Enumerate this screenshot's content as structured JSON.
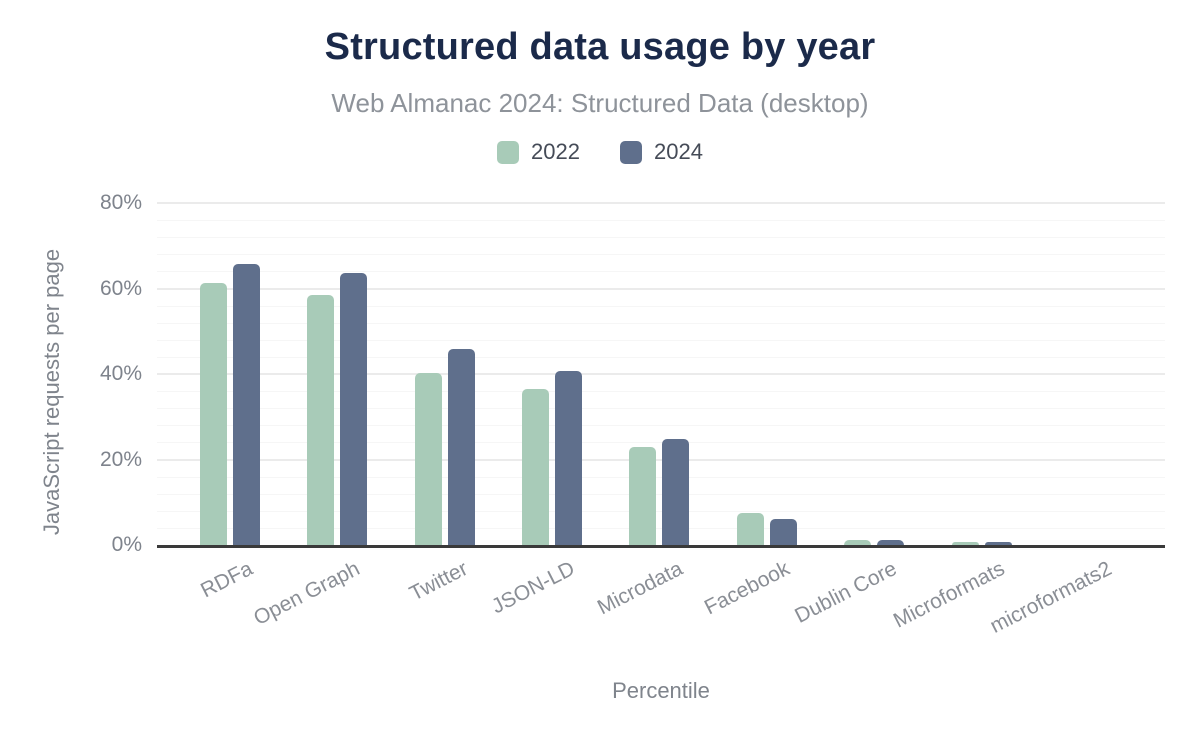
{
  "header": {
    "title": "Structured data usage by year",
    "subtitle": "Web Almanac 2024: Structured Data (desktop)"
  },
  "legend": {
    "position": "top",
    "items": [
      {
        "label": "2022",
        "color": "#a8cbb8"
      },
      {
        "label": "2024",
        "color": "#5f6f8c"
      }
    ]
  },
  "chart_data": {
    "type": "bar",
    "grouped": true,
    "title": "Structured data usage by year",
    "subtitle": "Web Almanac 2024: Structured Data (desktop)",
    "xlabel": "Percentile",
    "ylabel": "JavaScript requests per page",
    "categories": [
      "RDFa",
      "Open Graph",
      "Twitter",
      "JSON-LD",
      "Microdata",
      "Facebook",
      "Dublin Core",
      "Microformats",
      "microformats2"
    ],
    "series": [
      {
        "name": "2022",
        "color": "#a8cbb8",
        "values": [
          61.4,
          58.4,
          40.2,
          36.5,
          22.9,
          7.6,
          1.2,
          0.6,
          0
        ]
      },
      {
        "name": "2024",
        "color": "#5f6f8c",
        "values": [
          65.7,
          63.7,
          45.9,
          40.7,
          24.8,
          6.0,
          1.2,
          0.6,
          0
        ]
      }
    ],
    "ylim": [
      0,
      80
    ],
    "yticks": {
      "values": [
        0,
        20,
        40,
        60,
        80
      ],
      "labels": [
        "0%",
        "20%",
        "40%",
        "60%",
        "80%"
      ]
    },
    "minor_grid_step_pct": 4,
    "grid": true,
    "legend_position": "top",
    "bar_unit": "%"
  },
  "colors": {
    "title_text": "#1b2a4a",
    "subtitle_text": "#8e939a",
    "axis_text": "#7e838c",
    "axis_line": "#3a3a3a",
    "series_2022": "#a8cbb8",
    "series_2024": "#5f6f8c"
  }
}
